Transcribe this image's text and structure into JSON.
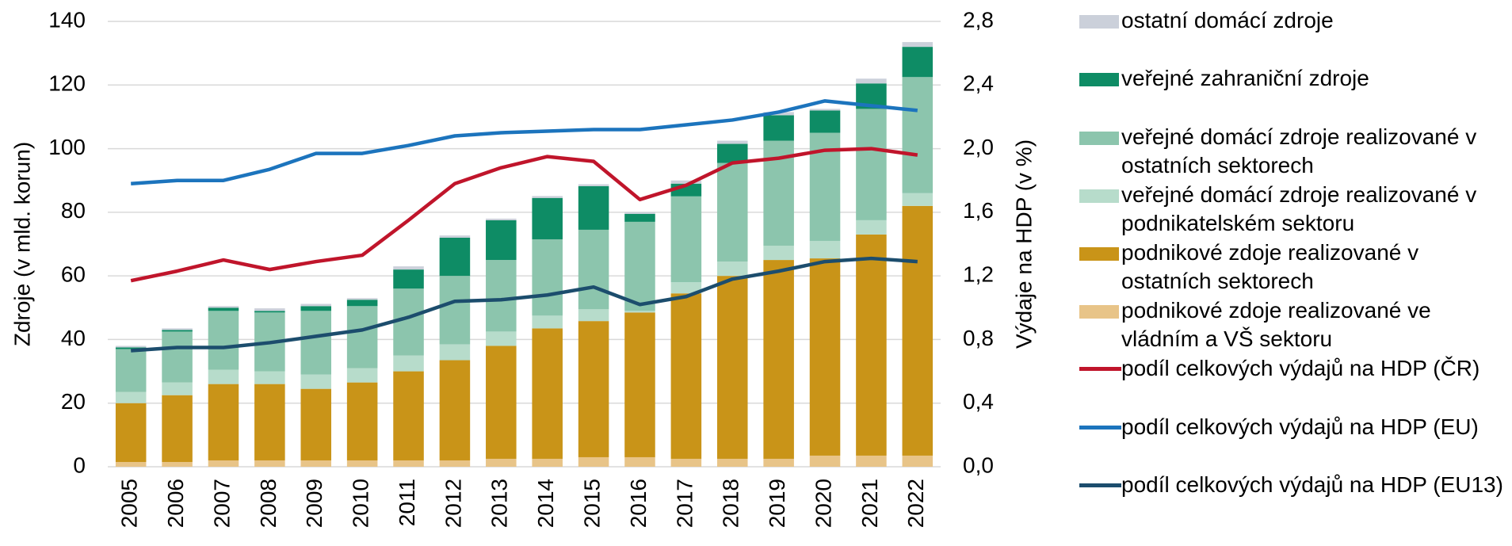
{
  "chart_data": {
    "type": "bar",
    "stacked": true,
    "legend": "right",
    "grid": true,
    "ylabel": "Zdroje (v mld. korun)",
    "y2label": "Výdaje na HDP (v %)",
    "categories": [
      "2005",
      "2006",
      "2007",
      "2008",
      "2009",
      "2010",
      "2011",
      "2012",
      "2013",
      "2014",
      "2015",
      "2016",
      "2017",
      "2018",
      "2019",
      "2020",
      "2021",
      "2022"
    ],
    "ylim": [
      0,
      140
    ],
    "yticks": [
      0,
      20,
      40,
      60,
      80,
      100,
      120,
      140
    ],
    "y2lim": [
      0,
      2.8
    ],
    "y2ticks": [
      {
        "value": 0,
        "label": "0,0"
      },
      {
        "value": 0.4,
        "label": "0,4"
      },
      {
        "value": 0.8,
        "label": "0,8"
      },
      {
        "value": 1.2,
        "label": "1,2"
      },
      {
        "value": 1.6,
        "label": "1,6"
      },
      {
        "value": 2.0,
        "label": "2,0"
      },
      {
        "value": 2.4,
        "label": "2,4"
      },
      {
        "value": 2.8,
        "label": "2,8"
      }
    ],
    "series": [
      {
        "name": "podnikové zdoje realizované ve vládním a VŠ sektoru",
        "type": "bar",
        "color": "#e8c488",
        "values": [
          1.5,
          1.5,
          2,
          2,
          2,
          2,
          2,
          2,
          2.5,
          2.5,
          3,
          3,
          2.5,
          2.5,
          2.5,
          3.5,
          3.5,
          3.5
        ]
      },
      {
        "name": "podnikové zdoje realizované v ostatních sektorech",
        "type": "bar",
        "color": "#c99418",
        "values": [
          18.5,
          21,
          24,
          24,
          22.5,
          24.5,
          28,
          31.5,
          35.5,
          41,
          42.8,
          45.5,
          52,
          57.5,
          62.5,
          62,
          69.5,
          78.5
        ]
      },
      {
        "name": "veřejné domácí zdroje realizované v podnikatelském sektoru",
        "type": "bar",
        "color": "#b7dccb",
        "values": [
          3.5,
          4,
          4.5,
          4,
          4.5,
          4.5,
          5,
          5,
          4.5,
          4,
          3.7,
          0.5,
          3.5,
          4.5,
          4.5,
          5.5,
          4.5,
          4
        ]
      },
      {
        "name": "veřejné domácí zdroje realizované v ostatních sektorech",
        "type": "bar",
        "color": "#8cc5ad",
        "values": [
          13.5,
          16,
          18.5,
          18.5,
          20,
          19.5,
          21,
          21.5,
          22.5,
          24,
          25,
          28,
          27,
          31,
          33,
          34,
          35,
          36.5
        ]
      },
      {
        "name": "veřejné zahraniční zdroje",
        "type": "bar",
        "color": "#0e8c65",
        "values": [
          0.5,
          0.5,
          1,
          0.5,
          1.5,
          2,
          6,
          12,
          12.5,
          13,
          13.7,
          2.5,
          4,
          6,
          8,
          7,
          8,
          9.5
        ]
      },
      {
        "name": "ostatní domácí zdroje",
        "type": "bar",
        "color": "#cbd0da",
        "values": [
          0.5,
          0.5,
          0.5,
          0.8,
          0.7,
          0.5,
          1,
          0.7,
          0.5,
          0.6,
          0.6,
          0.5,
          1,
          1,
          1,
          0.5,
          1.5,
          1.5
        ]
      },
      {
        "name": "podíl celkových výdajů na HDP (ČR)",
        "type": "line",
        "axis": "y2",
        "color": "#c0152b",
        "values": [
          1.17,
          1.23,
          1.3,
          1.24,
          1.29,
          1.33,
          1.55,
          1.78,
          1.88,
          1.95,
          1.92,
          1.68,
          1.77,
          1.91,
          1.94,
          1.99,
          2.0,
          1.96
        ]
      },
      {
        "name": "podíl celkových výdajů na HDP (EU)",
        "type": "line",
        "axis": "y2",
        "color": "#1c74bd",
        "values": [
          1.78,
          1.8,
          1.8,
          1.87,
          1.97,
          1.97,
          2.02,
          2.08,
          2.1,
          2.11,
          2.12,
          2.12,
          2.15,
          2.18,
          2.23,
          2.3,
          2.27,
          2.24
        ]
      },
      {
        "name": "podíl celkových výdajů na HDP (EU13)",
        "type": "line",
        "axis": "y2",
        "color": "#1c4d6d",
        "values": [
          0.73,
          0.75,
          0.75,
          0.78,
          0.82,
          0.86,
          0.94,
          1.04,
          1.05,
          1.08,
          1.13,
          1.02,
          1.07,
          1.18,
          1.23,
          1.29,
          1.31,
          1.29
        ]
      }
    ]
  }
}
